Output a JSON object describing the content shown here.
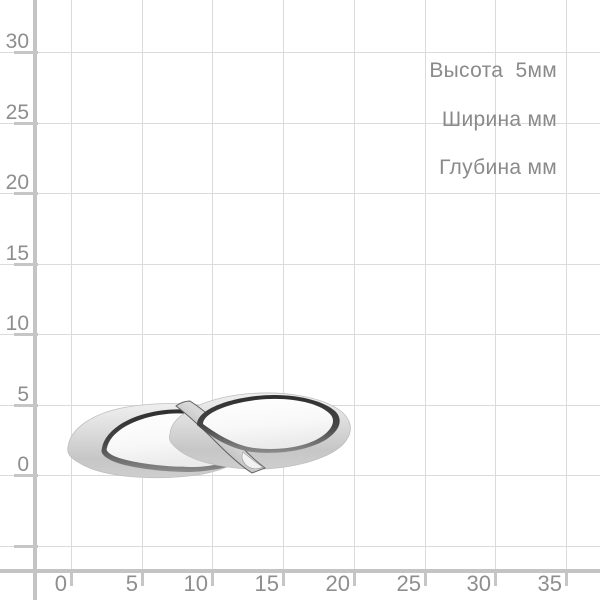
{
  "dimensions_panel": {
    "items": [
      {
        "id": "height",
        "text": "Высота  5мм"
      },
      {
        "id": "width",
        "text": "Ширина мм"
      },
      {
        "id": "depth",
        "text": "Глубина мм"
      }
    ]
  },
  "grid": {
    "x_tick_labels": [
      "0",
      "5",
      "10",
      "15",
      "20",
      "25",
      "30",
      "35"
    ],
    "y_tick_labels": [
      "30",
      "25",
      "20",
      "15",
      "10",
      "5",
      "0"
    ],
    "mm_per_cell": 5
  },
  "object": {
    "type": "ring",
    "description": "silver ring, horizontal side view, two overlapping polished oval panels"
  },
  "colors": {
    "grid_line": "#dbdbdb",
    "axis_line": "#c4c4c4",
    "tick_text": "#8e8e8e",
    "annotation_text": "#8a8a8a",
    "metal_light": "#efefef",
    "metal_shadow": "#c6c6c6",
    "rim_dark": "#333333",
    "face_white": "#fdfdfd"
  }
}
